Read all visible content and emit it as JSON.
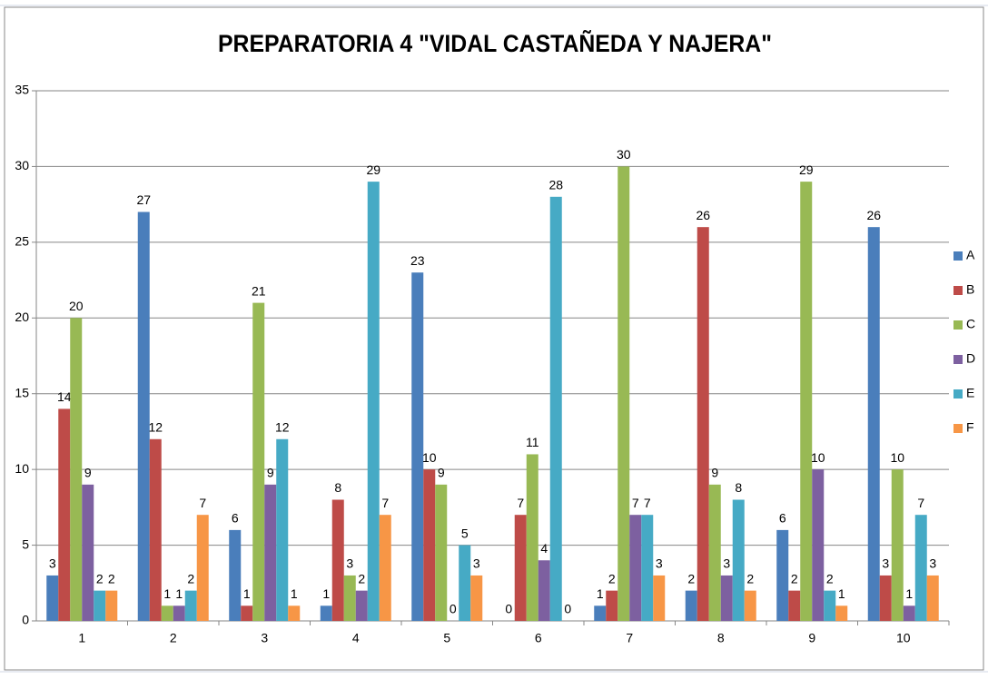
{
  "chart_data": {
    "type": "bar",
    "title": "PREPARATORIA 4 \"VIDAL CASTAÑEDA Y NAJERA\"",
    "categories": [
      "1",
      "2",
      "3",
      "4",
      "5",
      "6",
      "7",
      "8",
      "9",
      "10"
    ],
    "series": [
      {
        "name": "A",
        "color": "#4a7ebb",
        "values": [
          3,
          27,
          6,
          1,
          23,
          0,
          1,
          2,
          6,
          26
        ]
      },
      {
        "name": "B",
        "color": "#be4b48",
        "values": [
          14,
          12,
          1,
          8,
          10,
          7,
          2,
          26,
          2,
          3
        ]
      },
      {
        "name": "C",
        "color": "#98b954",
        "values": [
          20,
          1,
          21,
          3,
          9,
          11,
          30,
          9,
          29,
          10
        ]
      },
      {
        "name": "D",
        "color": "#7d60a0",
        "values": [
          9,
          1,
          9,
          2,
          0,
          4,
          7,
          3,
          10,
          1
        ]
      },
      {
        "name": "E",
        "color": "#46aac5",
        "values": [
          2,
          2,
          12,
          29,
          5,
          28,
          7,
          8,
          2,
          7
        ]
      },
      {
        "name": "F",
        "color": "#f79646",
        "values": [
          2,
          7,
          1,
          7,
          3,
          0,
          3,
          2,
          1,
          3
        ]
      }
    ],
    "ylim": [
      0,
      35
    ],
    "yticks": [
      0,
      5,
      10,
      15,
      20,
      25,
      30,
      35
    ],
    "grid": true,
    "legend": "right"
  }
}
